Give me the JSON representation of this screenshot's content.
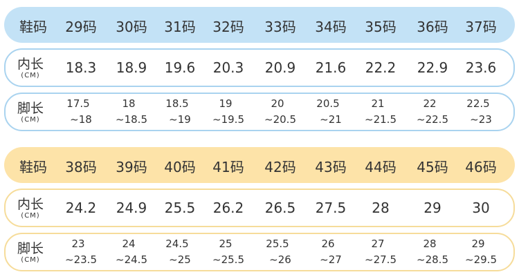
{
  "tables": [
    {
      "header": {
        "label": "鞋码",
        "sizes": [
          "29码",
          "30码",
          "31码",
          "32码",
          "33码",
          "34码",
          "35码",
          "36码",
          "37码"
        ]
      },
      "inner": {
        "label": "内长",
        "unit": "(CM)",
        "values": [
          18.3,
          18.9,
          19.6,
          20.3,
          20.9,
          21.6,
          22.2,
          22.9,
          23.6
        ]
      },
      "foot": {
        "label": "脚长",
        "unit": "(CM)",
        "values": [
          [
            "17.5",
            "~18"
          ],
          [
            "18",
            "~18.5"
          ],
          [
            "18.5",
            "~19"
          ],
          [
            "19",
            "~19.5"
          ],
          [
            "20",
            "~20.5"
          ],
          [
            "20.5",
            "~21"
          ],
          [
            "21",
            "~21.5"
          ],
          [
            "22",
            "~22.5"
          ],
          [
            "22.5",
            "~23"
          ]
        ]
      }
    },
    {
      "header": {
        "label": "鞋码",
        "sizes": [
          "38码",
          "39码",
          "40码",
          "41码",
          "42码",
          "43码",
          "44码",
          "45码",
          "46码"
        ]
      },
      "inner": {
        "label": "内长",
        "unit": "(CM)",
        "values": [
          24.2,
          24.9,
          25.5,
          26.2,
          26.5,
          27.5,
          28,
          29,
          30
        ]
      },
      "foot": {
        "label": "脚长",
        "unit": "(CM)",
        "values": [
          [
            "23",
            "~23.5"
          ],
          [
            "24",
            "~24.5"
          ],
          [
            "24.5",
            "~25"
          ],
          [
            "25",
            "~25.5"
          ],
          [
            "25.5",
            "~26"
          ],
          [
            "26",
            "~27"
          ],
          [
            "27",
            "~27.5"
          ],
          [
            "28",
            "~28.5"
          ],
          [
            "29",
            "~29.5"
          ]
        ]
      }
    }
  ]
}
